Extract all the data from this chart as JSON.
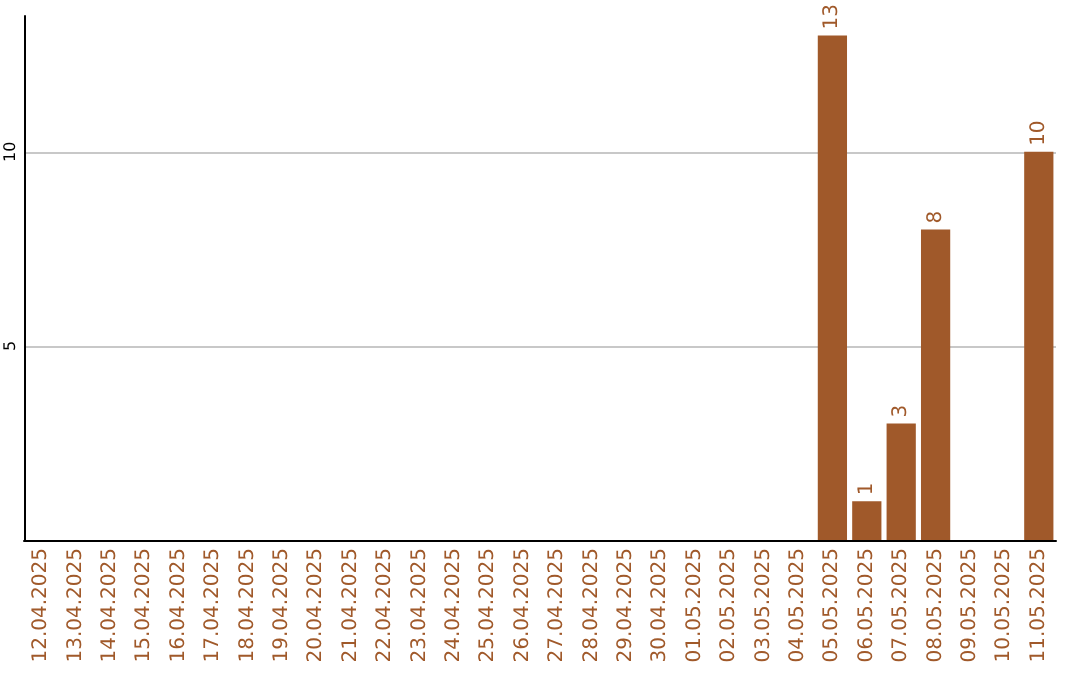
{
  "chart_data": {
    "type": "bar",
    "categories": [
      "12.04.2025",
      "13.04.2025",
      "14.04.2025",
      "15.04.2025",
      "16.04.2025",
      "17.04.2025",
      "18.04.2025",
      "19.04.2025",
      "20.04.2025",
      "21.04.2025",
      "22.04.2025",
      "23.04.2025",
      "24.04.2025",
      "25.04.2025",
      "26.04.2025",
      "27.04.2025",
      "28.04.2025",
      "29.04.2025",
      "30.04.2025",
      "01.05.2025",
      "02.05.2025",
      "03.05.2025",
      "04.05.2025",
      "05.05.2025",
      "06.05.2025",
      "07.05.2025",
      "08.05.2025",
      "09.05.2025",
      "10.05.2025",
      "11.05.2025"
    ],
    "values": [
      0,
      0,
      0,
      0,
      0,
      0,
      0,
      0,
      0,
      0,
      0,
      0,
      0,
      0,
      0,
      0,
      0,
      0,
      0,
      0,
      0,
      0,
      0,
      13,
      1,
      3,
      8,
      0,
      0,
      10
    ],
    "value_labels": [
      null,
      null,
      null,
      null,
      null,
      null,
      null,
      null,
      null,
      null,
      null,
      null,
      null,
      null,
      null,
      null,
      null,
      null,
      null,
      null,
      null,
      null,
      null,
      "13",
      "1",
      "3",
      "8",
      null,
      null,
      "10"
    ],
    "color": "#a0592a",
    "ylim": [
      0,
      13.5
    ],
    "yticks": [
      5,
      10
    ],
    "grid": "y"
  }
}
